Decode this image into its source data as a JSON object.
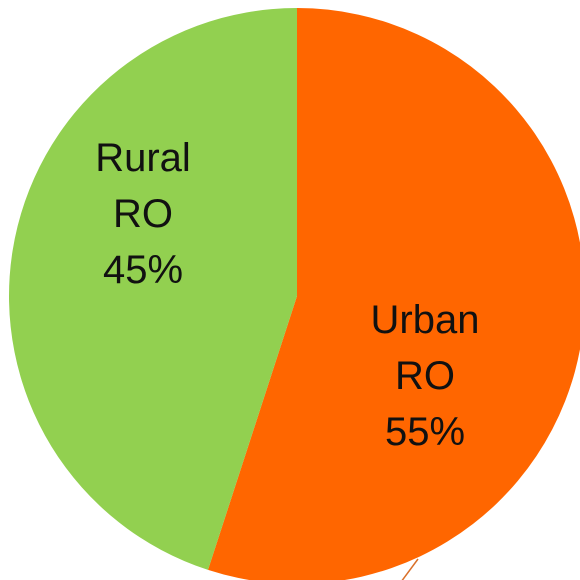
{
  "chart_data": {
    "type": "pie",
    "categories": [
      "Urban RO",
      "Rural RO"
    ],
    "values": [
      55,
      45
    ],
    "value_labels": [
      "55%",
      "45%"
    ],
    "colors": [
      "#ff6600",
      "#92d050"
    ]
  }
}
